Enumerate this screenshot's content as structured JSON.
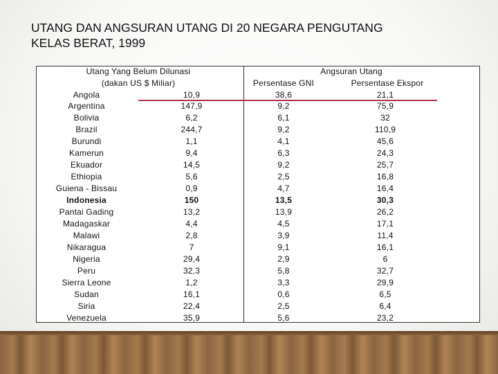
{
  "title": [
    "UTANG DAN ANGSURAN UTANG DI 20 NEGARA PENGUTANG",
    "KELAS BERAT, 1999"
  ],
  "table": {
    "group_headers": [
      "Utang Yang Belum Dilunasi",
      "Angsuran Utang"
    ],
    "sub_headers": [
      "(dakan US $ Miliar)",
      "Persentase GNI",
      "Persentase Ekspor"
    ],
    "bold_rows": [
      9
    ],
    "rows": [
      [
        "Angola",
        "10,9",
        "38,6",
        "21,1"
      ],
      [
        "Argentina",
        "147,9",
        "9,2",
        "75,9"
      ],
      [
        "Bolivia",
        "6,2",
        "6,1",
        "32"
      ],
      [
        "Brazil",
        "244,7",
        "9,2",
        "110,9"
      ],
      [
        "Burundi",
        "1,1",
        "4,1",
        "45,6"
      ],
      [
        "Kamerun",
        "9,4",
        "6,3",
        "24,3"
      ],
      [
        "Ekuador",
        "14,5",
        "9,2",
        "25,7"
      ],
      [
        "Ethiopia",
        "5,6",
        "2,5",
        "16,8"
      ],
      [
        "Guiena - Bissau",
        "0,9",
        "4,7",
        "16,4"
      ],
      [
        "Indonesia",
        "150",
        "13,5",
        "30,3"
      ],
      [
        "Pantai Gading",
        "13,2",
        "13,9",
        "26,2"
      ],
      [
        "Madagaskar",
        "4,4",
        "4,5",
        "17,1"
      ],
      [
        "Malawi",
        "2,8",
        "3,9",
        "11,4"
      ],
      [
        "Nikaragua",
        "7",
        "9,1",
        "16,1"
      ],
      [
        "Nigeria",
        "29,4",
        "2,9",
        "6"
      ],
      [
        "Peru",
        "32,3",
        "5,8",
        "32,7"
      ],
      [
        "Sierra Leone",
        "1,2",
        "3,3",
        "29,9"
      ],
      [
        "Sudan",
        "16,1",
        "0,6",
        "6,5"
      ],
      [
        "Siria",
        "22,4",
        "2,5",
        "6,4"
      ],
      [
        "Venezuela",
        "35,9",
        "5,6",
        "23,2"
      ]
    ]
  }
}
